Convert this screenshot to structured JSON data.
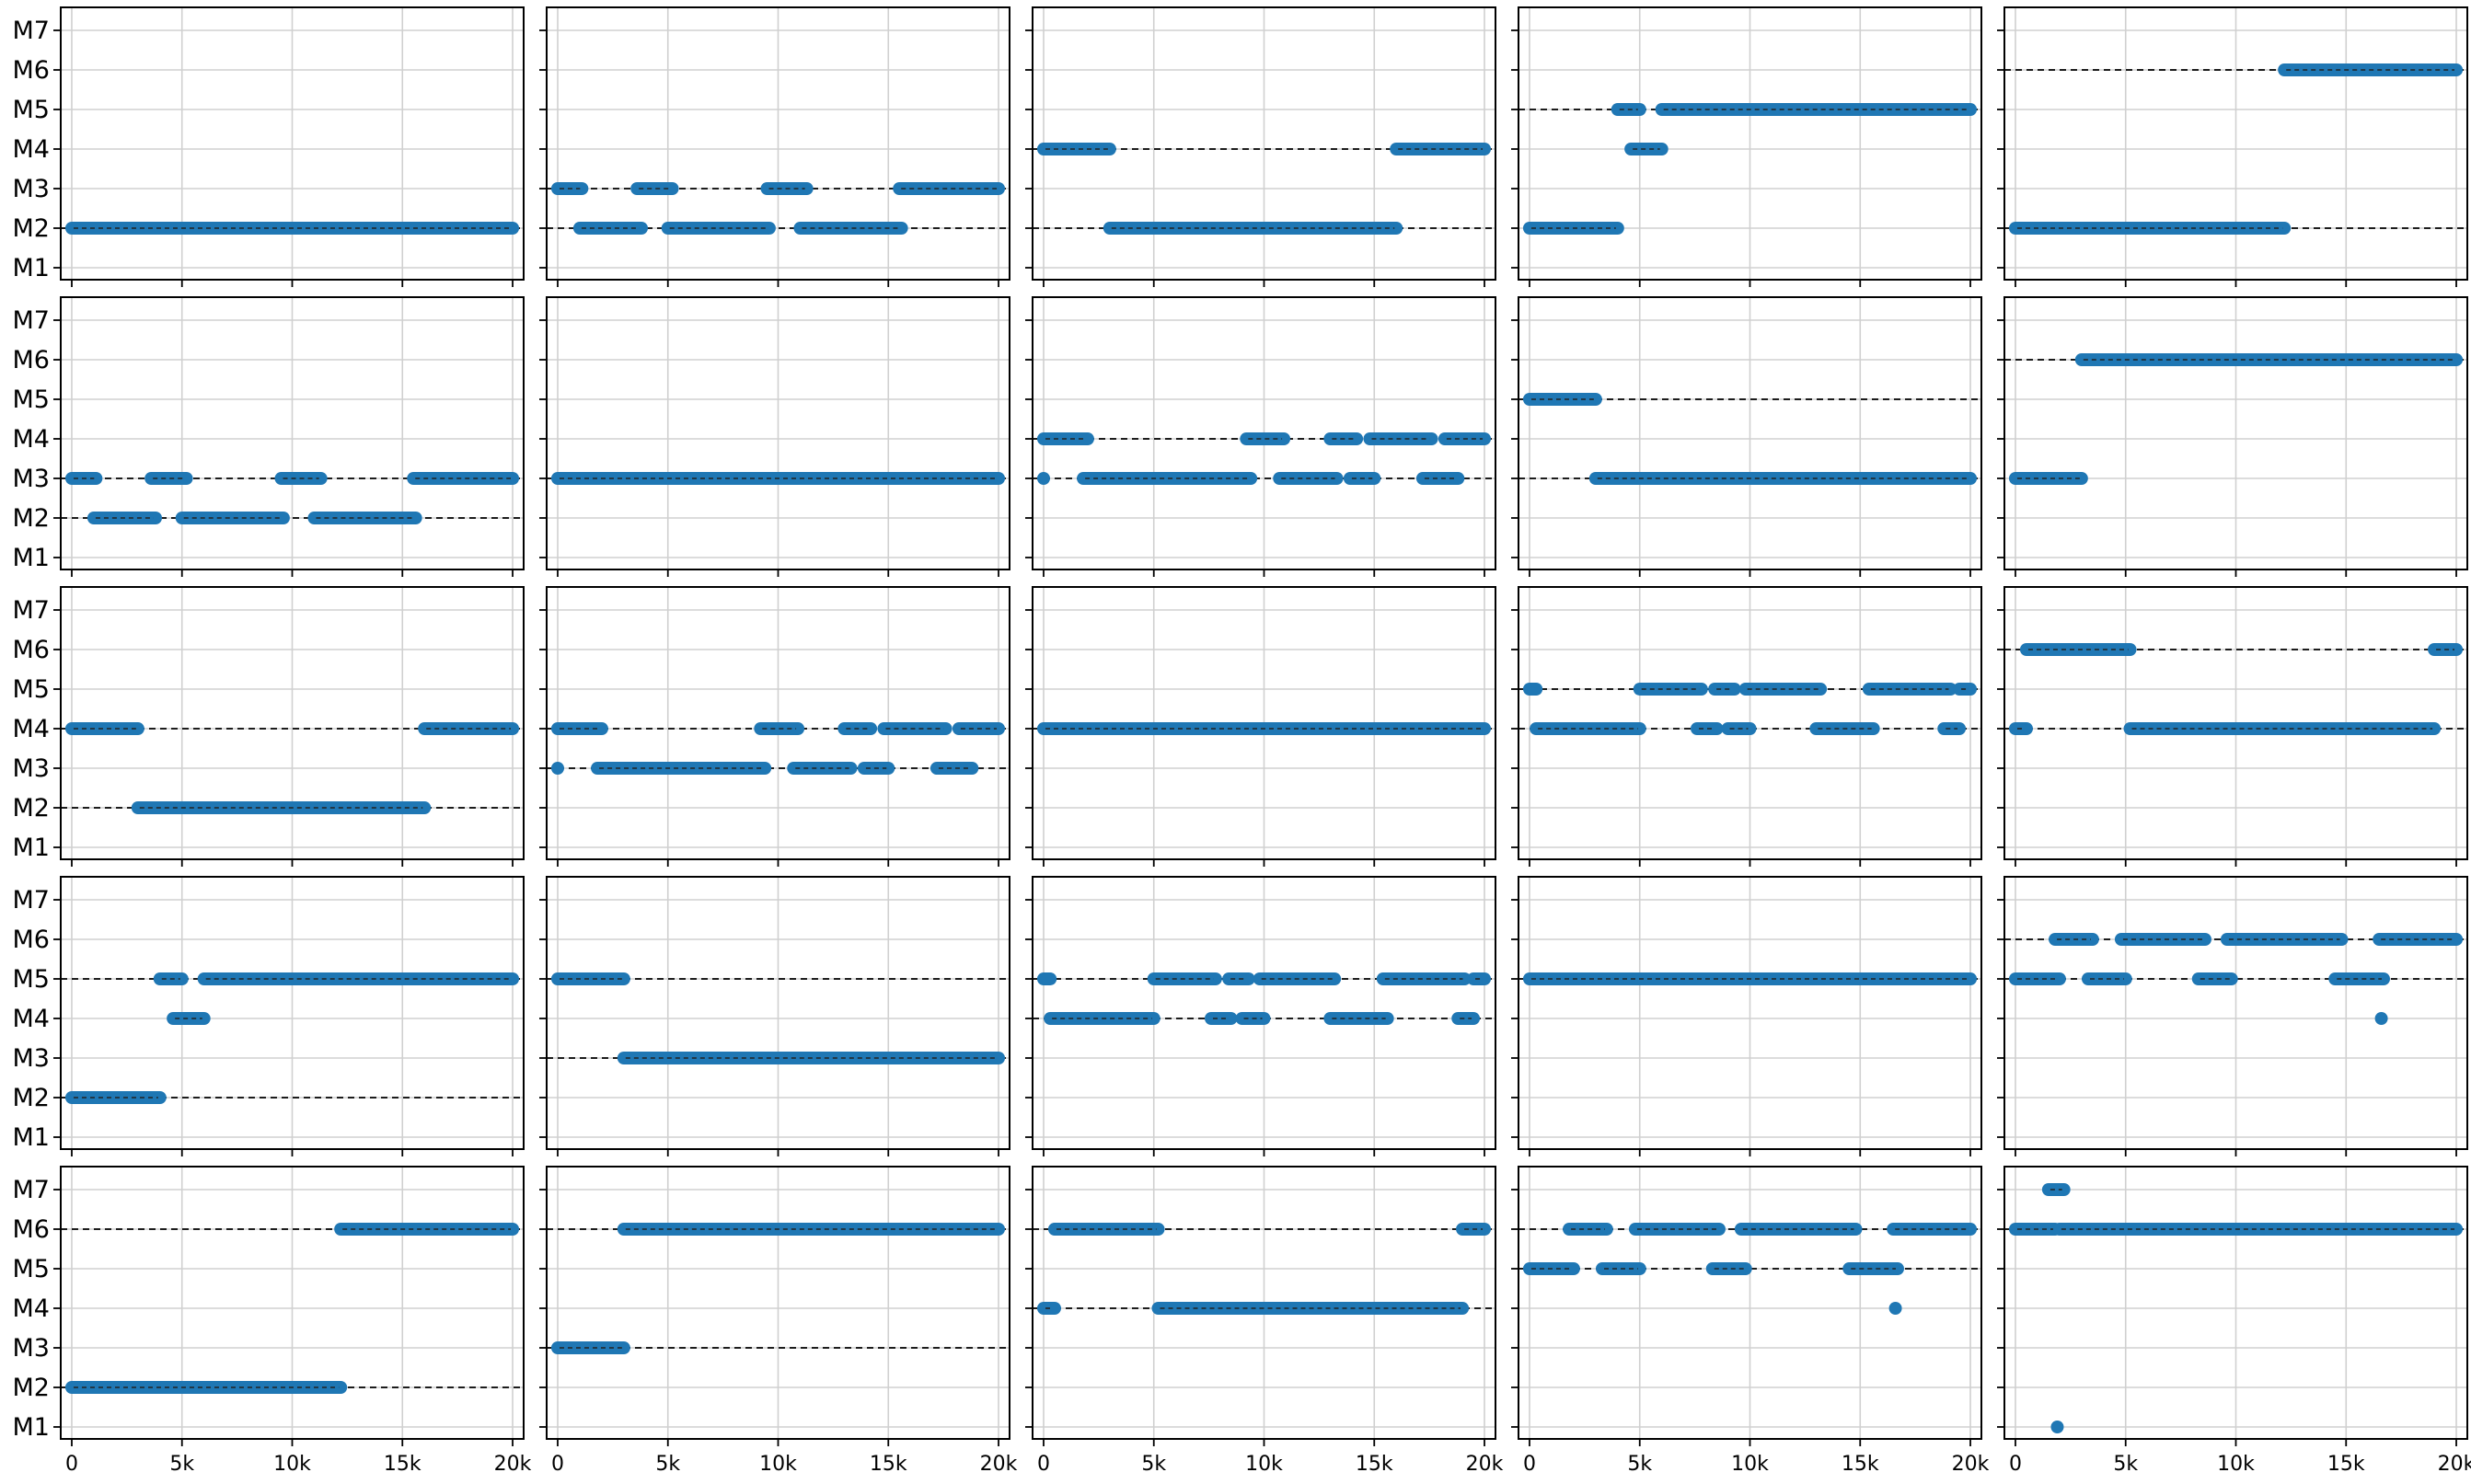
{
  "chart_data": {
    "type": "timeline",
    "layout": {
      "rows": 5,
      "cols": 5
    },
    "xlim": [
      -500,
      20500
    ],
    "xticks": [
      0,
      5000,
      10000,
      15000,
      20000
    ],
    "xtick_labels": [
      "0",
      "5k",
      "10k",
      "15k",
      "20k"
    ],
    "ylevels": [
      1,
      2,
      3,
      4,
      5,
      6,
      7
    ],
    "ytick_labels": [
      "M1",
      "M2",
      "M3",
      "M4",
      "M5",
      "M6",
      "M7"
    ],
    "ylim": [
      0.4,
      7.6
    ],
    "grid": true,
    "colors": {
      "segment": "#1f77b4",
      "reference": "#000000",
      "grid": "#d0d0d0"
    },
    "panels": [
      {
        "refs": [
          2
        ],
        "segments": [
          {
            "level": 2,
            "x0": 0,
            "x1": 20000
          }
        ]
      },
      {
        "refs": [
          3,
          2
        ],
        "segments": [
          {
            "level": 3,
            "x0": 0,
            "x1": 1100
          },
          {
            "level": 3,
            "x0": 3600,
            "x1": 5200
          },
          {
            "level": 3,
            "x0": 9500,
            "x1": 11300
          },
          {
            "level": 3,
            "x0": 15500,
            "x1": 20000
          },
          {
            "level": 2,
            "x0": 1000,
            "x1": 3800
          },
          {
            "level": 2,
            "x0": 5000,
            "x1": 9600
          },
          {
            "level": 2,
            "x0": 11000,
            "x1": 15600
          }
        ]
      },
      {
        "refs": [
          4,
          2
        ],
        "segments": [
          {
            "level": 4,
            "x0": 0,
            "x1": 3000
          },
          {
            "level": 4,
            "x0": 16000,
            "x1": 20000
          },
          {
            "level": 2,
            "x0": 3000,
            "x1": 16000
          }
        ]
      },
      {
        "refs": [
          5
        ],
        "segments": [
          {
            "level": 5,
            "x0": 4000,
            "x1": 5000
          },
          {
            "level": 5,
            "x0": 6000,
            "x1": 20000
          },
          {
            "level": 4,
            "x0": 4600,
            "x1": 6000
          },
          {
            "level": 2,
            "x0": 0,
            "x1": 4000
          }
        ]
      },
      {
        "refs": [
          6,
          2
        ],
        "segments": [
          {
            "level": 6,
            "x0": 12200,
            "x1": 20000
          },
          {
            "level": 2,
            "x0": 0,
            "x1": 12200
          }
        ]
      },
      {
        "refs": [
          3,
          2
        ],
        "segments": [
          {
            "level": 3,
            "x0": 0,
            "x1": 1100
          },
          {
            "level": 3,
            "x0": 3600,
            "x1": 5200
          },
          {
            "level": 3,
            "x0": 9500,
            "x1": 11300
          },
          {
            "level": 3,
            "x0": 15500,
            "x1": 20000
          },
          {
            "level": 2,
            "x0": 1000,
            "x1": 3800
          },
          {
            "level": 2,
            "x0": 5000,
            "x1": 9600
          },
          {
            "level": 2,
            "x0": 11000,
            "x1": 15600
          }
        ]
      },
      {
        "refs": [
          3
        ],
        "segments": [
          {
            "level": 3,
            "x0": 0,
            "x1": 20000
          }
        ]
      },
      {
        "refs": [
          4,
          3
        ],
        "segments": [
          {
            "level": 4,
            "x0": 0,
            "x1": 2000
          },
          {
            "level": 4,
            "x0": 9200,
            "x1": 10900
          },
          {
            "level": 4,
            "x0": 13000,
            "x1": 14200
          },
          {
            "level": 4,
            "x0": 14800,
            "x1": 17600
          },
          {
            "level": 4,
            "x0": 18200,
            "x1": 20000
          },
          {
            "level": 3,
            "x0": 0,
            "x1": 0
          },
          {
            "level": 3,
            "x0": 1800,
            "x1": 9400
          },
          {
            "level": 3,
            "x0": 10700,
            "x1": 13300
          },
          {
            "level": 3,
            "x0": 13900,
            "x1": 15000
          },
          {
            "level": 3,
            "x0": 17200,
            "x1": 18800
          }
        ]
      },
      {
        "refs": [
          5,
          3
        ],
        "segments": [
          {
            "level": 5,
            "x0": 0,
            "x1": 3000
          },
          {
            "level": 3,
            "x0": 3000,
            "x1": 20000
          }
        ]
      },
      {
        "refs": [
          6
        ],
        "segments": [
          {
            "level": 6,
            "x0": 3000,
            "x1": 20000
          },
          {
            "level": 3,
            "x0": 0,
            "x1": 3000
          }
        ]
      },
      {
        "refs": [
          4,
          2
        ],
        "segments": [
          {
            "level": 4,
            "x0": 0,
            "x1": 3000
          },
          {
            "level": 4,
            "x0": 16000,
            "x1": 20000
          },
          {
            "level": 2,
            "x0": 3000,
            "x1": 16000
          }
        ]
      },
      {
        "refs": [
          4,
          3
        ],
        "segments": [
          {
            "level": 4,
            "x0": 0,
            "x1": 2000
          },
          {
            "level": 4,
            "x0": 9200,
            "x1": 10900
          },
          {
            "level": 4,
            "x0": 13000,
            "x1": 14200
          },
          {
            "level": 4,
            "x0": 14800,
            "x1": 17600
          },
          {
            "level": 4,
            "x0": 18200,
            "x1": 20000
          },
          {
            "level": 3,
            "x0": 0,
            "x1": 0
          },
          {
            "level": 3,
            "x0": 1800,
            "x1": 9400
          },
          {
            "level": 3,
            "x0": 10700,
            "x1": 13300
          },
          {
            "level": 3,
            "x0": 13900,
            "x1": 15000
          },
          {
            "level": 3,
            "x0": 17200,
            "x1": 18800
          }
        ]
      },
      {
        "refs": [
          4
        ],
        "segments": [
          {
            "level": 4,
            "x0": 0,
            "x1": 20000
          }
        ]
      },
      {
        "refs": [
          5,
          4
        ],
        "segments": [
          {
            "level": 5,
            "x0": 0,
            "x1": 300
          },
          {
            "level": 5,
            "x0": 5000,
            "x1": 7800
          },
          {
            "level": 5,
            "x0": 8400,
            "x1": 9300
          },
          {
            "level": 5,
            "x0": 9800,
            "x1": 13200
          },
          {
            "level": 5,
            "x0": 15400,
            "x1": 19100
          },
          {
            "level": 5,
            "x0": 19500,
            "x1": 20000
          },
          {
            "level": 4,
            "x0": 300,
            "x1": 5000
          },
          {
            "level": 4,
            "x0": 7600,
            "x1": 8500
          },
          {
            "level": 4,
            "x0": 9000,
            "x1": 10000
          },
          {
            "level": 4,
            "x0": 13000,
            "x1": 15600
          },
          {
            "level": 4,
            "x0": 18800,
            "x1": 19500
          }
        ]
      },
      {
        "refs": [
          6,
          4
        ],
        "segments": [
          {
            "level": 6,
            "x0": 500,
            "x1": 5200
          },
          {
            "level": 6,
            "x0": 19000,
            "x1": 20000
          },
          {
            "level": 4,
            "x0": 0,
            "x1": 500
          },
          {
            "level": 4,
            "x0": 5200,
            "x1": 19000
          }
        ]
      },
      {
        "refs": [
          5,
          2
        ],
        "segments": [
          {
            "level": 5,
            "x0": 4000,
            "x1": 5000
          },
          {
            "level": 5,
            "x0": 6000,
            "x1": 20000
          },
          {
            "level": 4,
            "x0": 4600,
            "x1": 6000
          },
          {
            "level": 2,
            "x0": 0,
            "x1": 4000
          }
        ]
      },
      {
        "refs": [
          5,
          3
        ],
        "segments": [
          {
            "level": 5,
            "x0": 0,
            "x1": 3000
          },
          {
            "level": 3,
            "x0": 3000,
            "x1": 20000
          }
        ]
      },
      {
        "refs": [
          5,
          4
        ],
        "segments": [
          {
            "level": 5,
            "x0": 0,
            "x1": 300
          },
          {
            "level": 5,
            "x0": 5000,
            "x1": 7800
          },
          {
            "level": 5,
            "x0": 8400,
            "x1": 9300
          },
          {
            "level": 5,
            "x0": 9800,
            "x1": 13200
          },
          {
            "level": 5,
            "x0": 15400,
            "x1": 19100
          },
          {
            "level": 5,
            "x0": 19500,
            "x1": 20000
          },
          {
            "level": 4,
            "x0": 300,
            "x1": 5000
          },
          {
            "level": 4,
            "x0": 7600,
            "x1": 8500
          },
          {
            "level": 4,
            "x0": 9000,
            "x1": 10000
          },
          {
            "level": 4,
            "x0": 13000,
            "x1": 15600
          },
          {
            "level": 4,
            "x0": 18800,
            "x1": 19500
          }
        ]
      },
      {
        "refs": [
          5
        ],
        "segments": [
          {
            "level": 5,
            "x0": 0,
            "x1": 20000
          }
        ]
      },
      {
        "refs": [
          6,
          5
        ],
        "segments": [
          {
            "level": 6,
            "x0": 1800,
            "x1": 3500
          },
          {
            "level": 6,
            "x0": 4800,
            "x1": 8600
          },
          {
            "level": 6,
            "x0": 9600,
            "x1": 14800
          },
          {
            "level": 6,
            "x0": 16500,
            "x1": 20000
          },
          {
            "level": 5,
            "x0": 0,
            "x1": 2000
          },
          {
            "level": 5,
            "x0": 3300,
            "x1": 5000
          },
          {
            "level": 5,
            "x0": 8300,
            "x1": 9800
          },
          {
            "level": 5,
            "x0": 14500,
            "x1": 16700
          },
          {
            "level": 4,
            "x0": 16600,
            "x1": 16600
          }
        ]
      },
      {
        "refs": [
          6,
          2
        ],
        "segments": [
          {
            "level": 6,
            "x0": 12200,
            "x1": 20000
          },
          {
            "level": 2,
            "x0": 0,
            "x1": 12200
          }
        ]
      },
      {
        "refs": [
          6,
          3
        ],
        "segments": [
          {
            "level": 6,
            "x0": 3000,
            "x1": 20000
          },
          {
            "level": 3,
            "x0": 0,
            "x1": 3000
          }
        ]
      },
      {
        "refs": [
          6,
          4
        ],
        "segments": [
          {
            "level": 6,
            "x0": 500,
            "x1": 5200
          },
          {
            "level": 6,
            "x0": 19000,
            "x1": 20000
          },
          {
            "level": 4,
            "x0": 0,
            "x1": 500
          },
          {
            "level": 4,
            "x0": 5200,
            "x1": 19000
          }
        ]
      },
      {
        "refs": [
          6,
          5
        ],
        "segments": [
          {
            "level": 6,
            "x0": 1800,
            "x1": 3500
          },
          {
            "level": 6,
            "x0": 4800,
            "x1": 8600
          },
          {
            "level": 6,
            "x0": 9600,
            "x1": 14800
          },
          {
            "level": 6,
            "x0": 16500,
            "x1": 20000
          },
          {
            "level": 5,
            "x0": 0,
            "x1": 2000
          },
          {
            "level": 5,
            "x0": 3300,
            "x1": 5000
          },
          {
            "level": 5,
            "x0": 8300,
            "x1": 9800
          },
          {
            "level": 5,
            "x0": 14500,
            "x1": 16700
          },
          {
            "level": 4,
            "x0": 16600,
            "x1": 16600
          }
        ]
      },
      {
        "refs": [
          6
        ],
        "segments": [
          {
            "level": 6,
            "x0": 0,
            "x1": 1800
          },
          {
            "level": 6,
            "x0": 2000,
            "x1": 20000
          },
          {
            "level": 7,
            "x0": 1500,
            "x1": 2200
          },
          {
            "level": 1,
            "x0": 1900,
            "x1": 1900
          }
        ]
      }
    ]
  }
}
